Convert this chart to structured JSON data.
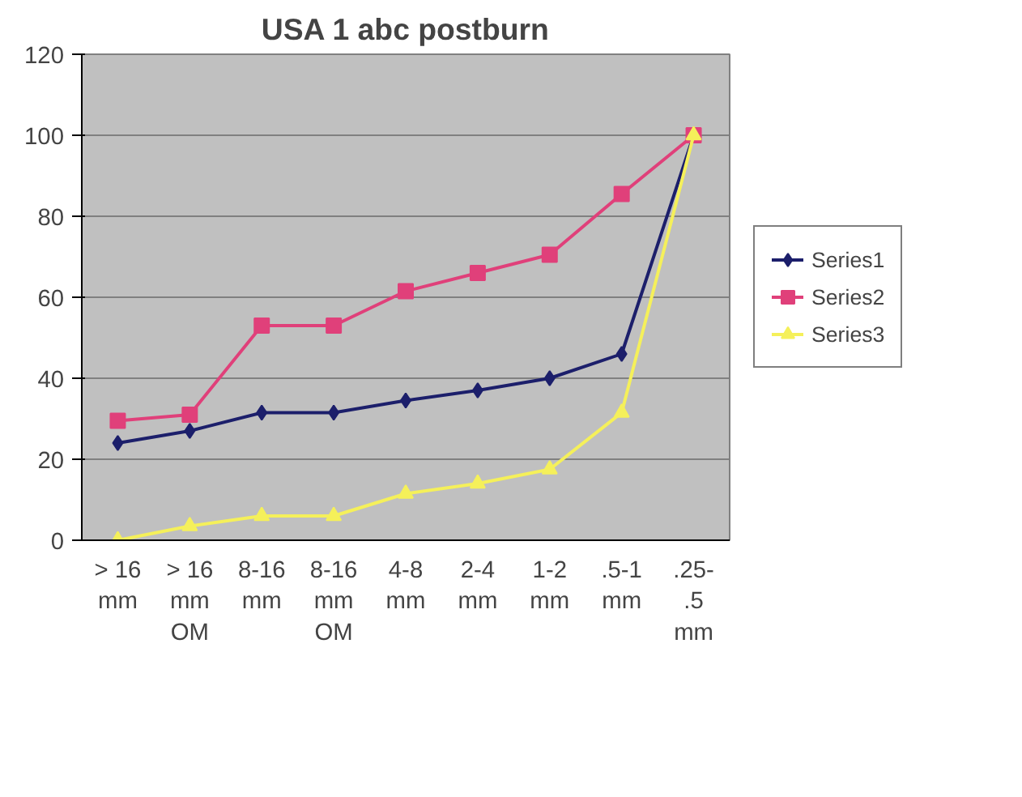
{
  "chart_data": {
    "type": "line",
    "title": "USA 1 abc postburn",
    "categories": [
      "> 16\nmm",
      "> 16\nmm\nOM",
      "8-16\nmm",
      "8-16\nmm\nOM",
      "4-8\nmm",
      "2-4\nmm",
      "1-2\nmm",
      ".5-1\nmm",
      ".25-\n.5\nmm"
    ],
    "series": [
      {
        "name": "Series1",
        "color": "#1c1f6b",
        "marker": "diamond",
        "values": [
          24,
          27,
          31.5,
          31.5,
          34.5,
          37,
          40,
          46,
          100
        ]
      },
      {
        "name": "Series2",
        "color": "#e0407a",
        "marker": "square",
        "values": [
          29.5,
          31,
          53,
          53,
          61.5,
          66,
          70.5,
          85.5,
          100
        ]
      },
      {
        "name": "Series3",
        "color": "#f5f05a",
        "marker": "triangle",
        "values": [
          0,
          3.5,
          6,
          6,
          11.5,
          14,
          17.5,
          31.5,
          100
        ]
      }
    ],
    "ylim": [
      0,
      120
    ],
    "yticks": [
      0,
      20,
      40,
      60,
      80,
      100,
      120
    ],
    "grid": "y",
    "legend": "right"
  }
}
